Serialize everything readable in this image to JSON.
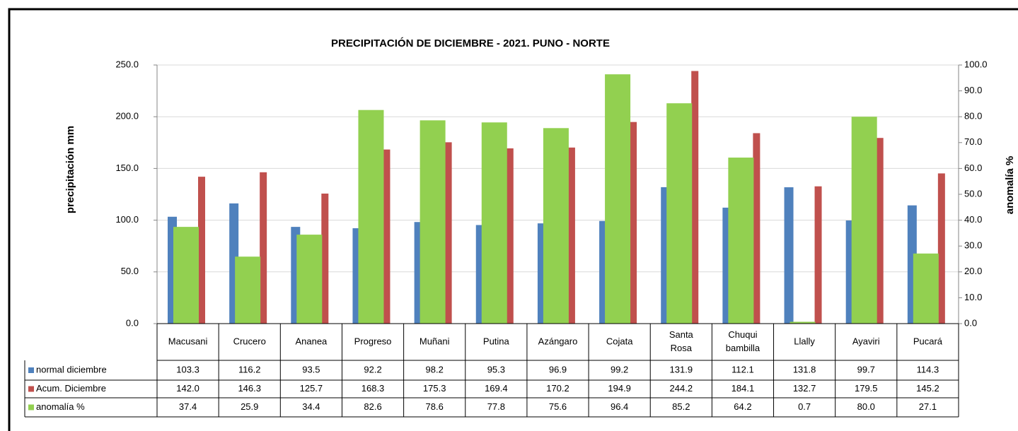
{
  "chart_data": {
    "type": "bar",
    "title": "PRECIPITACIÓN DE DICIEMBRE - 2021. PUNO - NORTE",
    "y_label": "precipitación mm",
    "y2_label": "anomalía %",
    "categories": [
      "Macusani",
      "Crucero",
      "Ananea",
      "Progreso",
      "Muñani",
      "Putina",
      "Azángaro",
      "Cojata",
      "Santa Rosa",
      "Chuqui bambilla",
      "Llally",
      "Ayaviri",
      "Pucará"
    ],
    "series": [
      {
        "name": "normal diciembre",
        "color": "#4f81bd",
        "axis": "y",
        "values": [
          103.3,
          116.2,
          93.5,
          92.2,
          98.2,
          95.3,
          96.9,
          99.2,
          131.9,
          112.1,
          131.8,
          99.7,
          114.3
        ],
        "value_labels": [
          "103.3",
          "116.2",
          "93.5",
          "92.2",
          "98.2",
          "95.3",
          "96.9",
          "99.2",
          "131.9",
          "112.1",
          "131.8",
          "99.7",
          "114.3"
        ]
      },
      {
        "name": "Acum. Diciembre",
        "color": "#c0504d",
        "axis": "y",
        "values": [
          142.0,
          146.3,
          125.7,
          168.3,
          175.3,
          169.4,
          170.2,
          194.9,
          244.2,
          184.1,
          132.7,
          179.5,
          145.2
        ],
        "value_labels": [
          "142.0",
          "146.3",
          "125.7",
          "168.3",
          "175.3",
          "169.4",
          "170.2",
          "194.9",
          "244.2",
          "184.1",
          "132.7",
          "179.5",
          "145.2"
        ]
      },
      {
        "name": "anomalía %",
        "color": "#92d050",
        "axis": "y2",
        "values": [
          37.4,
          25.9,
          34.4,
          82.6,
          78.6,
          77.8,
          75.6,
          96.4,
          85.2,
          64.2,
          0.7,
          80.0,
          27.1
        ],
        "value_labels": [
          "37.4",
          "25.9",
          "34.4",
          "82.6",
          "78.6",
          "77.8",
          "75.6",
          "96.4",
          "85.2",
          "64.2",
          "0.7",
          "80.0",
          "27.1"
        ]
      }
    ],
    "ylim": [
      0,
      250
    ],
    "yticks": [
      {
        "value": 0,
        "label": "0.0"
      },
      {
        "value": 50,
        "label": "50.0"
      },
      {
        "value": 100,
        "label": "100.0"
      },
      {
        "value": 150,
        "label": "150.0"
      },
      {
        "value": 200,
        "label": "200.0"
      },
      {
        "value": 250,
        "label": "250.0"
      }
    ],
    "y2lim": [
      0,
      100
    ],
    "y2ticks": [
      {
        "value": 0,
        "label": "0.0"
      },
      {
        "value": 10,
        "label": "10.0"
      },
      {
        "value": 20,
        "label": "20.0"
      },
      {
        "value": 30,
        "label": "30.0"
      },
      {
        "value": 40,
        "label": "40.0"
      },
      {
        "value": 50,
        "label": "50.0"
      },
      {
        "value": 60,
        "label": "60.0"
      },
      {
        "value": 70,
        "label": "70.0"
      },
      {
        "value": 80,
        "label": "80.0"
      },
      {
        "value": 90,
        "label": "90.0"
      },
      {
        "value": 100,
        "label": "100.0"
      }
    ],
    "grid": true
  }
}
